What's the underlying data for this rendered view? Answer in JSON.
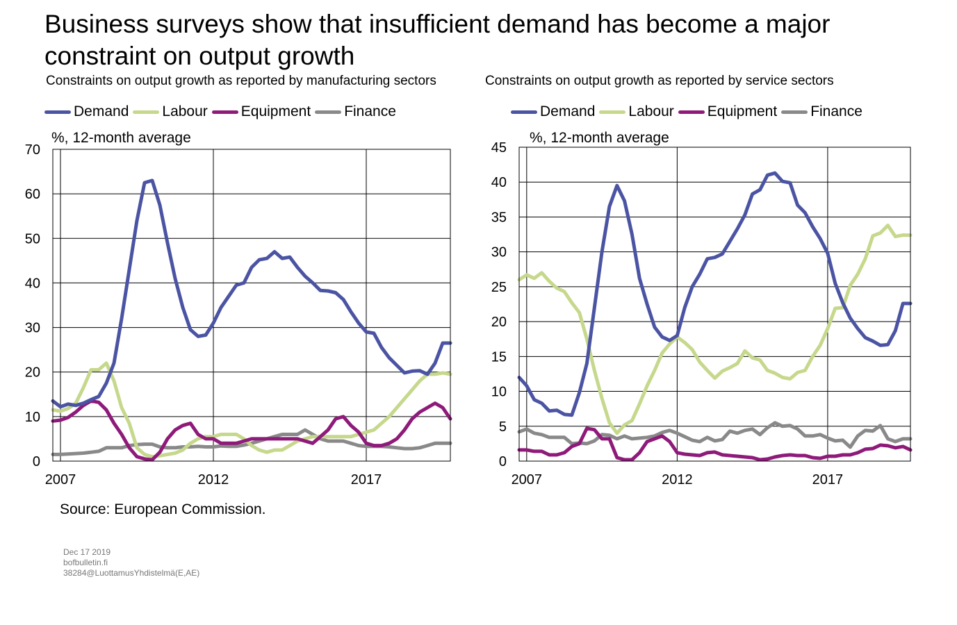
{
  "title": "Business surveys show that insufficient demand has become a major constraint on output growth",
  "source": "Source: European Commission.",
  "footer": {
    "date": "Dec 17 2019",
    "site": "bofbulletin.fi",
    "ref": "38284@LuottamusYhdistelmä(E,AE)"
  },
  "colors": {
    "Demand": "#4b54a3",
    "Labour": "#c6d88c",
    "Equipment": "#8e1a7a",
    "Finance": "#898989"
  },
  "chart_data": [
    {
      "type": "line",
      "title": "Constraints on output growth as reported by manufacturing sectors",
      "ylabel": "%, 12-month average",
      "xlabel": "",
      "xlim": [
        2006.75,
        2019.75
      ],
      "ylim": [
        0,
        70
      ],
      "yticks": [
        0,
        10,
        20,
        30,
        40,
        50,
        60,
        70
      ],
      "xticks": [
        2007,
        2012,
        2017
      ],
      "grid": true,
      "legend": "top",
      "x": [
        2006.75,
        2007.0,
        2007.25,
        2007.5,
        2007.75,
        2008.0,
        2008.25,
        2008.5,
        2008.75,
        2009.0,
        2009.25,
        2009.5,
        2009.75,
        2010.0,
        2010.25,
        2010.5,
        2010.75,
        2011.0,
        2011.25,
        2011.5,
        2011.75,
        2012.0,
        2012.25,
        2012.5,
        2012.75,
        2013.0,
        2013.25,
        2013.5,
        2013.75,
        2014.0,
        2014.25,
        2014.5,
        2014.75,
        2015.0,
        2015.25,
        2015.5,
        2015.75,
        2016.0,
        2016.25,
        2016.5,
        2016.75,
        2017.0,
        2017.25,
        2017.5,
        2017.75,
        2018.0,
        2018.25,
        2018.5,
        2018.75,
        2019.0,
        2019.25,
        2019.5,
        2019.75
      ],
      "series": [
        {
          "name": "Demand",
          "values": [
            13.5,
            12.2,
            12.8,
            12.5,
            13.0,
            13.8,
            14.5,
            17.5,
            22,
            32,
            43,
            54,
            62.5,
            63,
            57.5,
            49,
            41,
            34.5,
            29.5,
            28.0,
            28.3,
            31,
            34.5,
            37,
            39.5,
            40,
            43.5,
            45.2,
            45.5,
            47,
            45.5,
            45.8,
            43.5,
            41.5,
            40,
            38.3,
            38.2,
            37.8,
            36.3,
            33.5,
            31,
            29,
            28.7,
            25.5,
            23.2,
            21.5,
            19.8,
            20.2,
            20.3,
            19.5,
            22,
            26.5,
            26.5
          ]
        },
        {
          "name": "Labour",
          "values": [
            11.5,
            11.2,
            11.8,
            13,
            16.5,
            20.5,
            20.5,
            22,
            18,
            12,
            8.5,
            3,
            1.5,
            1,
            1.2,
            1.5,
            1.8,
            2.5,
            4,
            5,
            5.5,
            5.5,
            6,
            6,
            6,
            5,
            3.5,
            2.5,
            2,
            2.5,
            2.5,
            3.5,
            4.5,
            5,
            5.5,
            5.5,
            5.5,
            5.5,
            5.5,
            5.5,
            6,
            6.5,
            7,
            8.5,
            10,
            12,
            14,
            16,
            18,
            19.5,
            19.5,
            19.8,
            19.5
          ]
        },
        {
          "name": "Equipment",
          "values": [
            9,
            9.2,
            9.8,
            11,
            12.5,
            13.5,
            13.2,
            11.5,
            8.5,
            6,
            3,
            1,
            0.5,
            0.3,
            2,
            5,
            7,
            8,
            8.5,
            6,
            5,
            5,
            4,
            4,
            4,
            4.5,
            5,
            5,
            5,
            5,
            5,
            5,
            5,
            4.5,
            4,
            5.5,
            7,
            9.5,
            10,
            8,
            6.5,
            4,
            3.5,
            3.5,
            4,
            5,
            7,
            9.5,
            11,
            12,
            13,
            12,
            9.5
          ]
        },
        {
          "name": "Finance",
          "values": [
            1.5,
            1.5,
            1.6,
            1.7,
            1.8,
            2,
            2.2,
            3,
            3,
            3,
            3.5,
            3.7,
            3.8,
            3.8,
            3.2,
            3,
            3,
            3.2,
            3.2,
            3.3,
            3.2,
            3.2,
            3.4,
            3.3,
            3.3,
            3.6,
            4,
            4.5,
            5,
            5.5,
            6,
            6,
            6,
            7,
            6,
            5,
            4.5,
            4.5,
            4.5,
            4,
            3.5,
            3.3,
            3.3,
            3.3,
            3.2,
            3,
            2.8,
            2.8,
            3,
            3.5,
            4,
            4,
            4
          ]
        }
      ]
    },
    {
      "type": "line",
      "title": "Constraints on output growth as reported by service sectors",
      "ylabel": "%, 12-month average",
      "xlabel": "",
      "xlim": [
        2006.75,
        2019.75
      ],
      "ylim": [
        0,
        45
      ],
      "yticks": [
        0,
        5,
        10,
        15,
        20,
        25,
        30,
        35,
        40,
        45
      ],
      "xticks": [
        2007,
        2012,
        2017
      ],
      "grid": true,
      "legend": "top",
      "x": [
        2006.75,
        2007.0,
        2007.25,
        2007.5,
        2007.75,
        2008.0,
        2008.25,
        2008.5,
        2008.75,
        2009.0,
        2009.25,
        2009.5,
        2009.75,
        2010.0,
        2010.25,
        2010.5,
        2010.75,
        2011.0,
        2011.25,
        2011.5,
        2011.75,
        2012.0,
        2012.25,
        2012.5,
        2012.75,
        2013.0,
        2013.25,
        2013.5,
        2013.75,
        2014.0,
        2014.25,
        2014.5,
        2014.75,
        2015.0,
        2015.25,
        2015.5,
        2015.75,
        2016.0,
        2016.25,
        2016.5,
        2016.75,
        2017.0,
        2017.25,
        2017.5,
        2017.75,
        2018.0,
        2018.25,
        2018.5,
        2018.75,
        2019.0,
        2019.25,
        2019.5,
        2019.75
      ],
      "series": [
        {
          "name": "Demand",
          "values": [
            12,
            10.8,
            8.8,
            8.3,
            7.2,
            7.3,
            6.7,
            6.6,
            9.8,
            14,
            22,
            30,
            36.5,
            39.5,
            37.3,
            32.5,
            26.2,
            22.5,
            19.2,
            17.8,
            17.3,
            18,
            22,
            25,
            26.8,
            29,
            29.2,
            29.7,
            31.5,
            33.3,
            35.3,
            38.3,
            38.9,
            41,
            41.3,
            40.1,
            39.9,
            36.7,
            35.6,
            33.6,
            31.9,
            29.8,
            25.5,
            22.7,
            20.5,
            19,
            17.7,
            17.2,
            16.6,
            16.7,
            18.7,
            22.6,
            22.6
          ]
        },
        {
          "name": "Labour",
          "values": [
            26,
            26.7,
            26.2,
            27,
            25.8,
            24.8,
            24.3,
            22.7,
            21.3,
            17.5,
            13,
            9,
            5.5,
            4,
            5.2,
            5.8,
            8.2,
            10.8,
            13,
            15.5,
            16.8,
            17.8,
            17,
            16,
            14.2,
            13,
            11.9,
            12.9,
            13.4,
            14,
            15.8,
            14.8,
            14.5,
            13,
            12.6,
            12,
            11.8,
            12.7,
            13,
            15,
            16.6,
            19,
            21.9,
            22,
            25.2,
            26.8,
            29,
            32.3,
            32.7,
            33.8,
            32.2,
            32.4,
            32.4
          ]
        },
        {
          "name": "Equipment",
          "values": [
            1.6,
            1.6,
            1.4,
            1.4,
            0.9,
            0.9,
            1.2,
            2.1,
            2.5,
            4.7,
            4.5,
            3.2,
            3.2,
            0.5,
            0.2,
            0.2,
            1.2,
            2.8,
            3.2,
            3.6,
            2.8,
            1.2,
            1,
            0.9,
            0.8,
            1.2,
            1.3,
            0.9,
            0.8,
            0.7,
            0.6,
            0.5,
            0.2,
            0.3,
            0.6,
            0.8,
            0.9,
            0.8,
            0.8,
            0.5,
            0.4,
            0.7,
            0.7,
            0.9,
            0.9,
            1.2,
            1.7,
            1.8,
            2.3,
            2.2,
            1.9,
            2.1,
            1.6
          ]
        },
        {
          "name": "Finance",
          "values": [
            4.2,
            4.6,
            4,
            3.8,
            3.4,
            3.4,
            3.4,
            2.5,
            2.6,
            2.5,
            2.9,
            3.8,
            3.7,
            3.2,
            3.6,
            3.2,
            3.3,
            3.4,
            3.6,
            4.1,
            4.4,
            4,
            3.5,
            3,
            2.8,
            3.4,
            2.9,
            3.1,
            4.3,
            4,
            4.4,
            4.6,
            3.8,
            4.8,
            5.5,
            5,
            5.1,
            4.6,
            3.6,
            3.6,
            3.8,
            3.3,
            2.9,
            3,
            2,
            3.6,
            4.4,
            4.3,
            5.1,
            3.2,
            2.8,
            3.2,
            3.2
          ]
        }
      ]
    }
  ]
}
